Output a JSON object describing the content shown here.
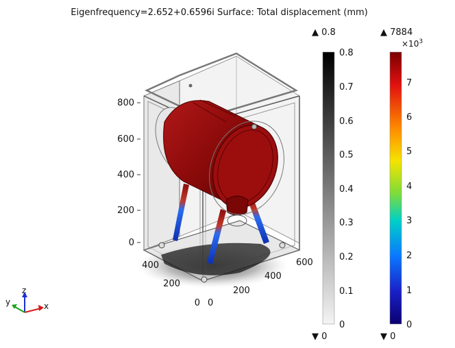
{
  "title": "Eigenfrequency=2.652+0.6596i   Surface: Total displacement (mm)",
  "axes": {
    "z_ticks": [
      "800",
      "600",
      "400",
      "200",
      "0"
    ],
    "y_ticks": [
      "400",
      "200",
      "0"
    ],
    "x_ticks": [
      "0",
      "200",
      "400",
      "600"
    ]
  },
  "triad": {
    "x": "x",
    "y": "y",
    "z": "z"
  },
  "colorbar_gray": {
    "max_label": "▲ 0.8",
    "min_label": "▼ 0",
    "range": [
      0,
      0.8
    ],
    "ticks": [
      "0.8",
      "0.7",
      "0.6",
      "0.5",
      "0.4",
      "0.3",
      "0.2",
      "0.1",
      "0"
    ]
  },
  "colorbar_rainbow": {
    "max_label": "▲ 7884",
    "min_label": "▼ 0",
    "scale_base": "×10",
    "scale_exp": "3",
    "range": [
      0,
      7.884
    ],
    "ticks": [
      "7",
      "6",
      "5",
      "4",
      "3",
      "2",
      "1",
      "0"
    ]
  },
  "colors": {
    "drum_red": "#8b0a0a",
    "leg_blue": "#1a4fd6",
    "leg_red": "#c0392b"
  }
}
